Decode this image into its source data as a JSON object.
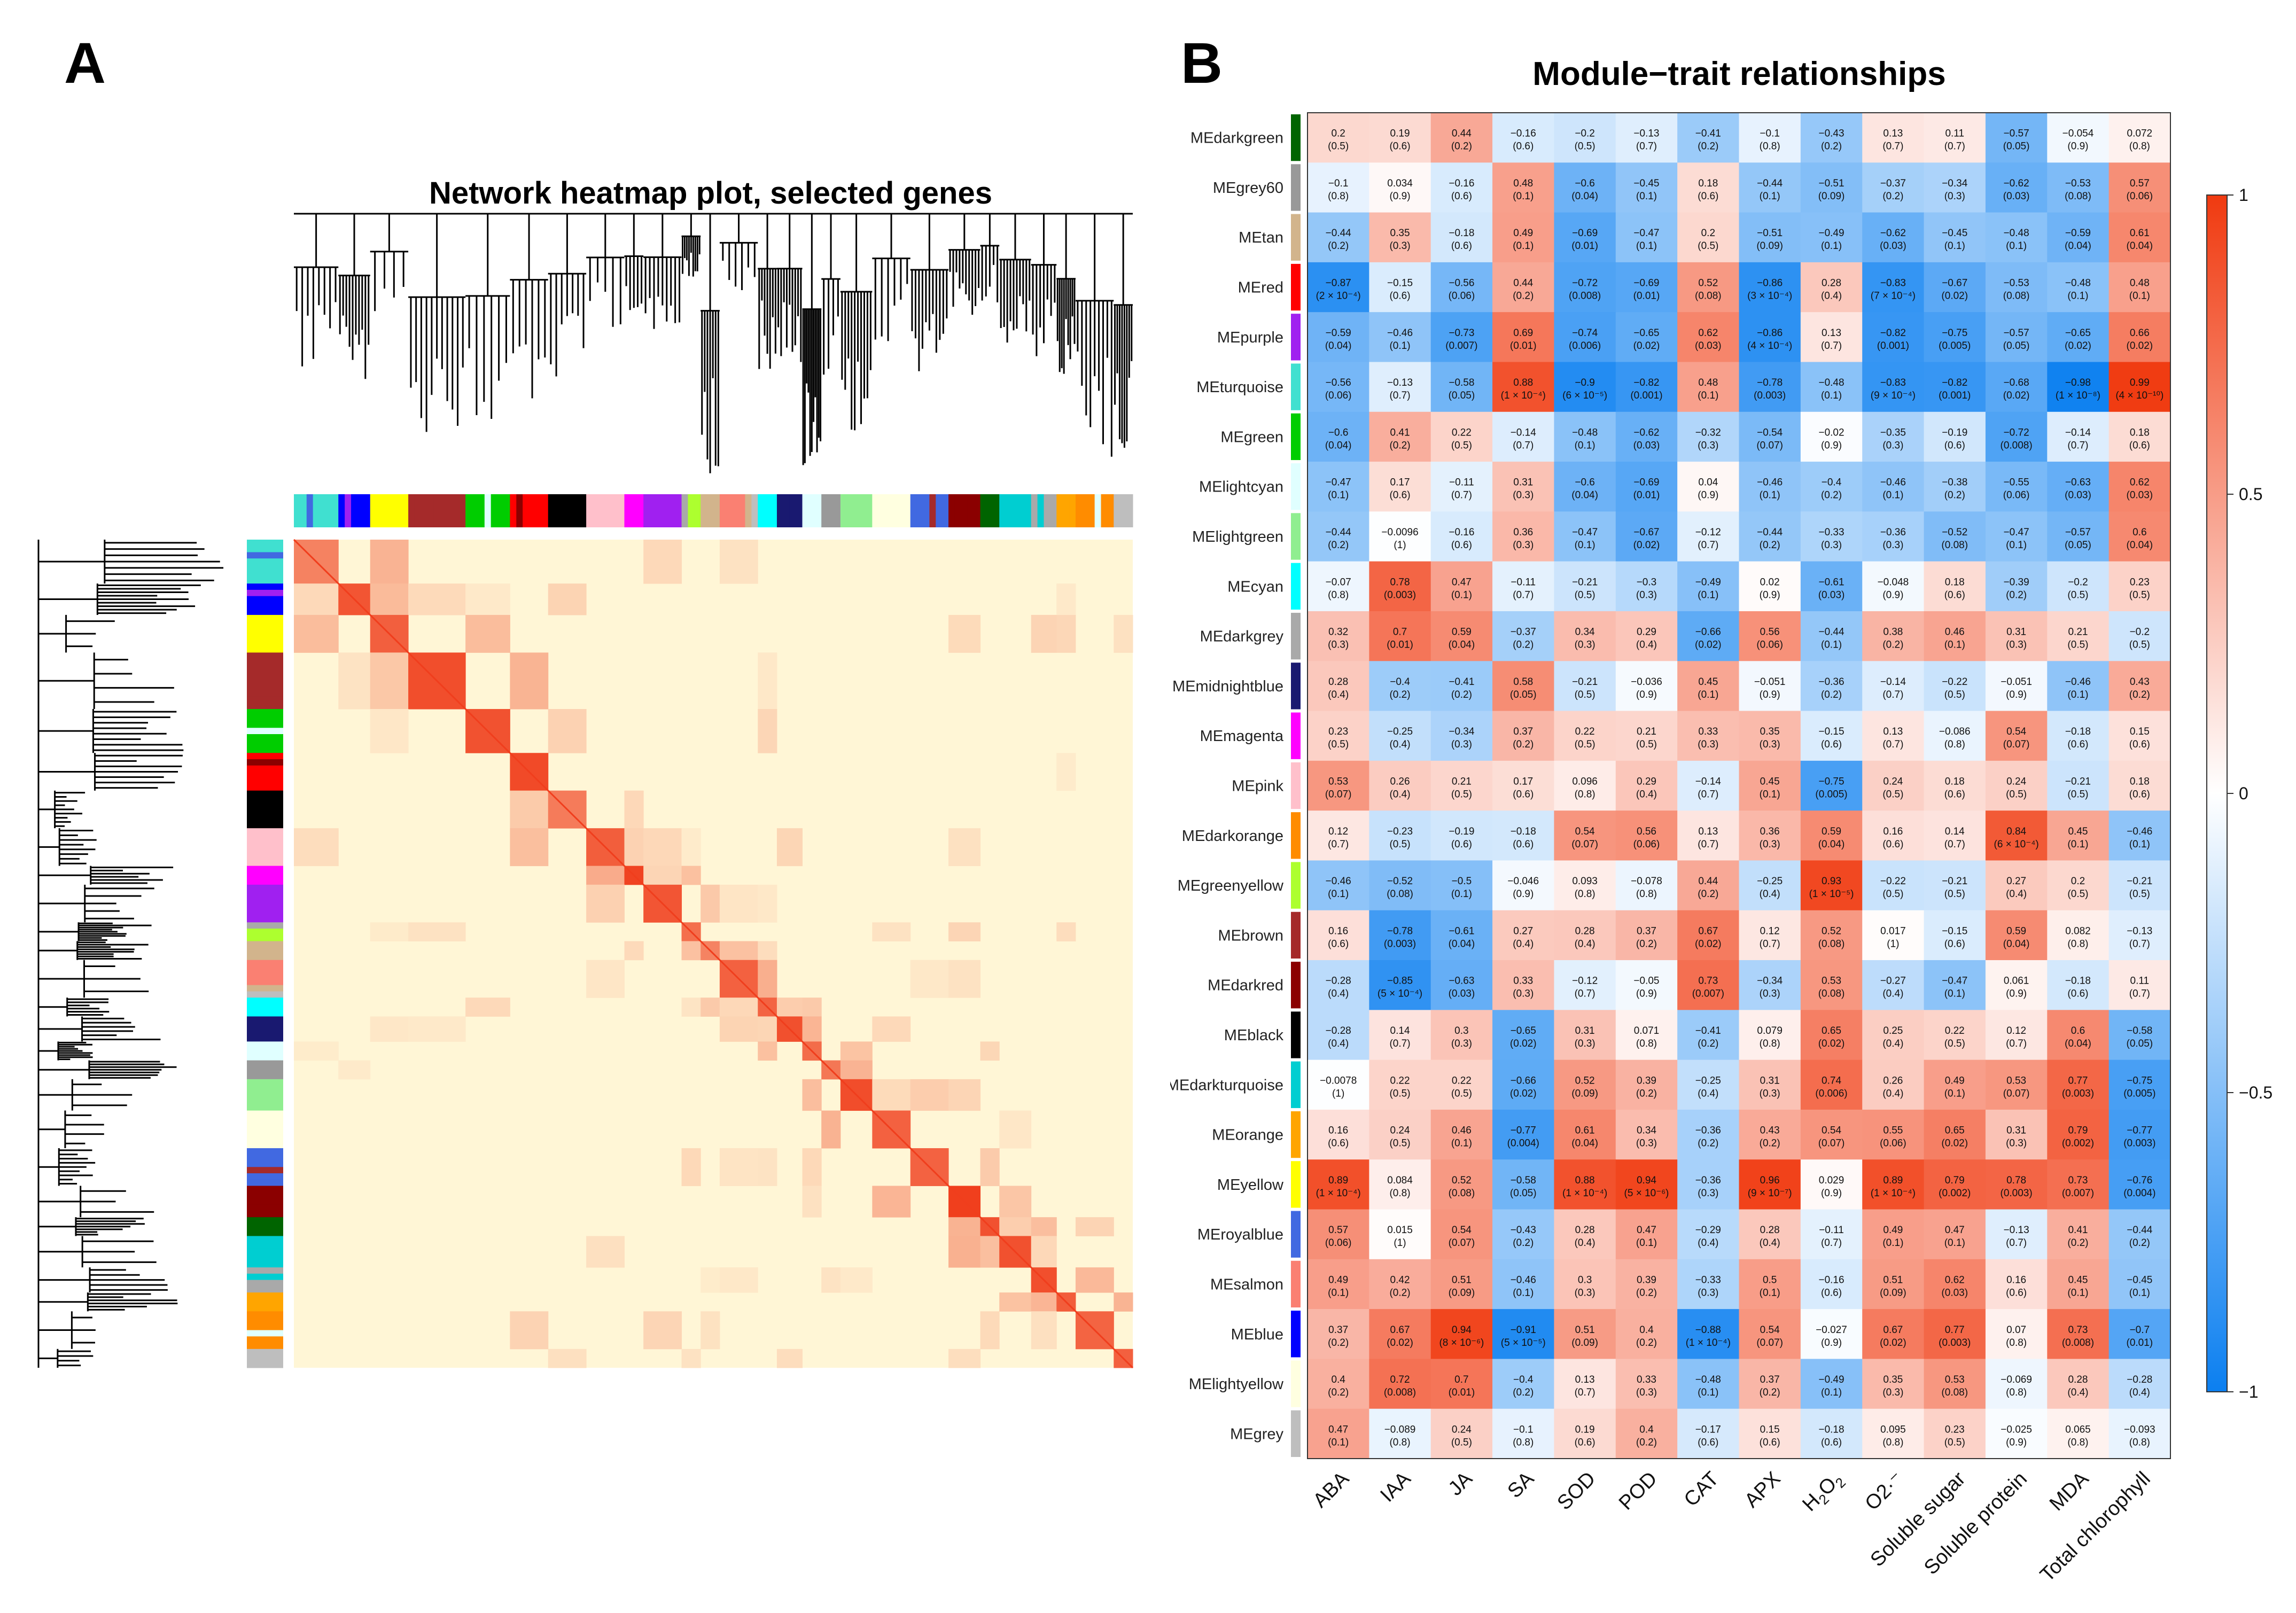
{
  "panels": {
    "a": {
      "label": "A",
      "title": "Network heatmap plot, selected genes"
    },
    "b": {
      "label": "B",
      "title": "Module−trait relationships"
    }
  },
  "colors": {
    "negative": "#0b7ff0",
    "neutral": "#ffffff",
    "positive": "#f03a10",
    "tom_low": "#fff6d6",
    "tom_high": "#ee2a08",
    "dendrogram": "#000000"
  },
  "network_modules": {
    "order": [
      "MEturquoise",
      "MEblue",
      "MEyellow",
      "MEbrown",
      "MEgreen",
      "MEred",
      "MEblack",
      "MEpink",
      "MEmagenta",
      "MEpurple",
      "MEgreenyellow",
      "MEtan",
      "MEsalmon",
      "MEcyan",
      "MEmidnightblue",
      "MElightcyan",
      "MEgrey60",
      "MElightgreen",
      "MElightyellow",
      "MEroyalblue",
      "MEdarkred",
      "MEdarkgreen",
      "MEdarkturquoise",
      "MEdarkgrey",
      "MEorange",
      "MEdarkorange",
      "MEgrey"
    ]
  },
  "chart_data": {
    "type": "heatmap",
    "title": "Module−trait relationships",
    "xlabel": "",
    "ylabel": "",
    "zlim": [
      -1,
      1
    ],
    "colorbar_ticks": [
      "1",
      "0.5",
      "0",
      "−0.5",
      "−1"
    ],
    "columns": [
      "ABA",
      "IAA",
      "JA",
      "SA",
      "SOD",
      "POD",
      "CAT",
      "APX",
      "H2O2",
      "O2·⁻",
      "Soluble sugar",
      "Soluble protein",
      "MDA",
      "Total chlorophyll"
    ],
    "rows": [
      {
        "module": "MEdarkgreen",
        "swatch": "#006400",
        "values": [
          0.2,
          0.19,
          0.44,
          -0.16,
          -0.2,
          -0.13,
          -0.41,
          -0.1,
          -0.43,
          0.13,
          0.11,
          -0.57,
          -0.054,
          0.072
        ],
        "pvalues": [
          "0.5",
          "0.6",
          "0.2",
          "0.6",
          "0.5",
          "0.7",
          "0.2",
          "0.8",
          "0.2",
          "0.7",
          "0.7",
          "0.05",
          "0.9",
          "0.8"
        ]
      },
      {
        "module": "MEgrey60",
        "swatch": "#999999",
        "values": [
          -0.1,
          0.034,
          -0.16,
          0.48,
          -0.6,
          -0.45,
          0.18,
          -0.44,
          -0.51,
          -0.37,
          -0.34,
          -0.62,
          -0.53,
          0.57
        ],
        "pvalues": [
          "0.8",
          "0.9",
          "0.6",
          "0.1",
          "0.04",
          "0.1",
          "0.6",
          "0.1",
          "0.09",
          "0.2",
          "0.3",
          "0.03",
          "0.08",
          "0.06"
        ]
      },
      {
        "module": "MEtan",
        "swatch": "#d2b48c",
        "values": [
          -0.44,
          0.35,
          -0.18,
          0.49,
          -0.69,
          -0.47,
          0.2,
          -0.51,
          -0.49,
          -0.62,
          -0.45,
          -0.48,
          -0.59,
          0.61
        ],
        "pvalues": [
          "0.2",
          "0.3",
          "0.6",
          "0.1",
          "0.01",
          "0.1",
          "0.5",
          "0.09",
          "0.1",
          "0.03",
          "0.1",
          "0.1",
          "0.04",
          "0.04"
        ]
      },
      {
        "module": "MEred",
        "swatch": "#ff0000",
        "values": [
          -0.87,
          -0.15,
          -0.56,
          0.44,
          -0.72,
          -0.69,
          0.52,
          -0.86,
          0.28,
          -0.83,
          -0.67,
          -0.53,
          -0.48,
          0.48
        ],
        "pvalues": [
          "2 × 10⁻⁴",
          "0.6",
          "0.06",
          "0.2",
          "0.008",
          "0.01",
          "0.08",
          "3 × 10⁻⁴",
          "0.4",
          "7 × 10⁻⁴",
          "0.02",
          "0.08",
          "0.1",
          "0.1"
        ]
      },
      {
        "module": "MEpurple",
        "swatch": "#a020f0",
        "values": [
          -0.59,
          -0.46,
          -0.73,
          0.69,
          -0.74,
          -0.65,
          0.62,
          -0.86,
          0.13,
          -0.82,
          -0.75,
          -0.57,
          -0.65,
          0.66
        ],
        "pvalues": [
          "0.04",
          "0.1",
          "0.007",
          "0.01",
          "0.006",
          "0.02",
          "0.03",
          "4 × 10⁻⁴",
          "0.7",
          "0.001",
          "0.005",
          "0.05",
          "0.02",
          "0.02"
        ]
      },
      {
        "module": "MEturquoise",
        "swatch": "#40e0d0",
        "values": [
          -0.56,
          -0.13,
          -0.58,
          0.88,
          -0.9,
          -0.82,
          0.48,
          -0.78,
          -0.48,
          -0.83,
          -0.82,
          -0.68,
          -0.98,
          0.99
        ],
        "pvalues": [
          "0.06",
          "0.7",
          "0.05",
          "1 × 10⁻⁴",
          "6 × 10⁻⁵",
          "0.001",
          "0.1",
          "0.003",
          "0.1",
          "9 × 10⁻⁴",
          "0.001",
          "0.02",
          "1 × 10⁻⁸",
          "4 × 10⁻¹⁰"
        ]
      },
      {
        "module": "MEgreen",
        "swatch": "#00cd00",
        "values": [
          -0.6,
          0.41,
          0.22,
          -0.14,
          -0.48,
          -0.62,
          -0.32,
          -0.54,
          -0.02,
          -0.35,
          -0.19,
          -0.72,
          -0.14,
          0.18
        ],
        "pvalues": [
          "0.04",
          "0.2",
          "0.5",
          "0.7",
          "0.1",
          "0.03",
          "0.3",
          "0.07",
          "0.9",
          "0.3",
          "0.6",
          "0.008",
          "0.7",
          "0.6"
        ]
      },
      {
        "module": "MElightcyan",
        "swatch": "#e0ffff",
        "values": [
          -0.47,
          0.17,
          -0.11,
          0.31,
          -0.6,
          -0.69,
          0.04,
          -0.46,
          -0.4,
          -0.46,
          -0.38,
          -0.55,
          -0.63,
          0.62
        ],
        "pvalues": [
          "0.1",
          "0.6",
          "0.7",
          "0.3",
          "0.04",
          "0.01",
          "0.9",
          "0.1",
          "0.2",
          "0.1",
          "0.2",
          "0.06",
          "0.03",
          "0.03"
        ]
      },
      {
        "module": "MElightgreen",
        "swatch": "#90ee90",
        "values": [
          -0.44,
          -0.0096,
          -0.16,
          0.36,
          -0.47,
          -0.67,
          -0.12,
          -0.44,
          -0.33,
          -0.36,
          -0.52,
          -0.47,
          -0.57,
          0.6
        ],
        "pvalues": [
          "0.2",
          "1",
          "0.6",
          "0.3",
          "0.1",
          "0.02",
          "0.7",
          "0.2",
          "0.3",
          "0.3",
          "0.08",
          "0.1",
          "0.05",
          "0.04"
        ]
      },
      {
        "module": "MEcyan",
        "swatch": "#00ffff",
        "values": [
          -0.07,
          0.78,
          0.47,
          -0.11,
          -0.21,
          -0.3,
          -0.49,
          0.02,
          -0.61,
          -0.048,
          0.18,
          -0.39,
          -0.2,
          0.23
        ],
        "pvalues": [
          "0.8",
          "0.003",
          "0.1",
          "0.7",
          "0.5",
          "0.3",
          "0.1",
          "0.9",
          "0.03",
          "0.9",
          "0.6",
          "0.2",
          "0.5",
          "0.5"
        ]
      },
      {
        "module": "MEdarkgrey",
        "swatch": "#a9a9a9",
        "values": [
          0.32,
          0.7,
          0.59,
          -0.37,
          0.34,
          0.29,
          -0.66,
          0.56,
          -0.44,
          0.38,
          0.46,
          0.31,
          0.21,
          -0.2
        ],
        "pvalues": [
          "0.3",
          "0.01",
          "0.04",
          "0.2",
          "0.3",
          "0.4",
          "0.02",
          "0.06",
          "0.1",
          "0.2",
          "0.1",
          "0.3",
          "0.5",
          "0.5"
        ]
      },
      {
        "module": "MEmidnightblue",
        "swatch": "#191970",
        "values": [
          0.28,
          -0.4,
          -0.41,
          0.58,
          -0.21,
          -0.036,
          0.45,
          -0.051,
          -0.36,
          -0.14,
          -0.22,
          -0.051,
          -0.46,
          0.43
        ],
        "pvalues": [
          "0.4",
          "0.2",
          "0.2",
          "0.05",
          "0.5",
          "0.9",
          "0.1",
          "0.9",
          "0.2",
          "0.7",
          "0.5",
          "0.9",
          "0.1",
          "0.2"
        ]
      },
      {
        "module": "MEmagenta",
        "swatch": "#ff00ff",
        "values": [
          0.23,
          -0.25,
          -0.34,
          0.37,
          0.22,
          0.21,
          0.33,
          0.35,
          -0.15,
          0.13,
          -0.086,
          0.54,
          -0.18,
          0.15
        ],
        "pvalues": [
          "0.5",
          "0.4",
          "0.3",
          "0.2",
          "0.5",
          "0.5",
          "0.3",
          "0.3",
          "0.6",
          "0.7",
          "0.8",
          "0.07",
          "0.6",
          "0.6"
        ]
      },
      {
        "module": "MEpink",
        "swatch": "#ffc0cb",
        "values": [
          0.53,
          0.26,
          0.21,
          0.17,
          0.096,
          0.29,
          -0.14,
          0.45,
          -0.75,
          0.24,
          0.18,
          0.24,
          -0.21,
          0.18
        ],
        "pvalues": [
          "0.07",
          "0.4",
          "0.5",
          "0.6",
          "0.8",
          "0.4",
          "0.7",
          "0.1",
          "0.005",
          "0.5",
          "0.6",
          "0.5",
          "0.5",
          "0.6"
        ]
      },
      {
        "module": "MEdarkorange",
        "swatch": "#ff8c00",
        "values": [
          0.12,
          -0.23,
          -0.19,
          -0.18,
          0.54,
          0.56,
          0.13,
          0.36,
          0.59,
          0.16,
          0.14,
          0.84,
          0.45,
          -0.46
        ],
        "pvalues": [
          "0.7",
          "0.5",
          "0.6",
          "0.6",
          "0.07",
          "0.06",
          "0.7",
          "0.3",
          "0.04",
          "0.6",
          "0.7",
          "6 × 10⁻⁴",
          "0.1",
          "0.1"
        ]
      },
      {
        "module": "MEgreenyellow",
        "swatch": "#adff2f",
        "values": [
          -0.46,
          -0.52,
          -0.5,
          -0.046,
          0.093,
          -0.078,
          0.44,
          -0.25,
          0.93,
          -0.22,
          -0.21,
          0.27,
          0.2,
          -0.21
        ],
        "pvalues": [
          "0.1",
          "0.08",
          "0.1",
          "0.9",
          "0.8",
          "0.8",
          "0.2",
          "0.4",
          "1 × 10⁻⁵",
          "0.5",
          "0.5",
          "0.4",
          "0.5",
          "0.5"
        ]
      },
      {
        "module": "MEbrown",
        "swatch": "#a52a2a",
        "values": [
          0.16,
          -0.78,
          -0.61,
          0.27,
          0.28,
          0.37,
          0.67,
          0.12,
          0.52,
          0.017,
          -0.15,
          0.59,
          0.082,
          -0.13
        ],
        "pvalues": [
          "0.6",
          "0.003",
          "0.04",
          "0.4",
          "0.4",
          "0.2",
          "0.02",
          "0.7",
          "0.08",
          "1",
          "0.6",
          "0.04",
          "0.8",
          "0.7"
        ]
      },
      {
        "module": "MEdarkred",
        "swatch": "#8b0000",
        "values": [
          -0.28,
          -0.85,
          -0.63,
          0.33,
          -0.12,
          -0.05,
          0.73,
          -0.34,
          0.53,
          -0.27,
          -0.47,
          0.061,
          -0.18,
          0.11
        ],
        "pvalues": [
          "0.4",
          "5 × 10⁻⁴",
          "0.03",
          "0.3",
          "0.7",
          "0.9",
          "0.007",
          "0.3",
          "0.08",
          "0.4",
          "0.1",
          "0.9",
          "0.6",
          "0.7"
        ]
      },
      {
        "module": "MEblack",
        "swatch": "#000000",
        "values": [
          -0.28,
          0.14,
          0.3,
          -0.65,
          0.31,
          0.071,
          -0.41,
          0.079,
          0.65,
          0.25,
          0.22,
          0.12,
          0.6,
          -0.58
        ],
        "pvalues": [
          "0.4",
          "0.7",
          "0.3",
          "0.02",
          "0.3",
          "0.8",
          "0.2",
          "0.8",
          "0.02",
          "0.4",
          "0.5",
          "0.7",
          "0.04",
          "0.05"
        ]
      },
      {
        "module": "MEdarkturquoise",
        "swatch": "#00ced1",
        "values": [
          -0.0078,
          0.22,
          0.22,
          -0.66,
          0.52,
          0.39,
          -0.25,
          0.31,
          0.74,
          0.26,
          0.49,
          0.53,
          0.77,
          -0.75
        ],
        "pvalues": [
          "1",
          "0.5",
          "0.5",
          "0.02",
          "0.09",
          "0.2",
          "0.4",
          "0.3",
          "0.006",
          "0.4",
          "0.1",
          "0.07",
          "0.003",
          "0.005"
        ]
      },
      {
        "module": "MEorange",
        "swatch": "#ffa500",
        "values": [
          0.16,
          0.24,
          0.46,
          -0.77,
          0.61,
          0.34,
          -0.36,
          0.43,
          0.54,
          0.55,
          0.65,
          0.31,
          0.79,
          -0.77
        ],
        "pvalues": [
          "0.6",
          "0.5",
          "0.1",
          "0.004",
          "0.04",
          "0.3",
          "0.2",
          "0.2",
          "0.07",
          "0.06",
          "0.02",
          "0.3",
          "0.002",
          "0.003"
        ]
      },
      {
        "module": "MEyellow",
        "swatch": "#ffff00",
        "values": [
          0.89,
          0.084,
          0.52,
          -0.58,
          0.88,
          0.94,
          -0.36,
          0.96,
          0.029,
          0.89,
          0.79,
          0.78,
          0.73,
          -0.76
        ],
        "pvalues": [
          "1 × 10⁻⁴",
          "0.8",
          "0.08",
          "0.05",
          "1 × 10⁻⁴",
          "5 × 10⁻⁶",
          "0.3",
          "9 × 10⁻⁷",
          "0.9",
          "1 × 10⁻⁴",
          "0.002",
          "0.003",
          "0.007",
          "0.004"
        ]
      },
      {
        "module": "MEroyalblue",
        "swatch": "#4169e1",
        "values": [
          0.57,
          0.015,
          0.54,
          -0.43,
          0.28,
          0.47,
          -0.29,
          0.28,
          -0.11,
          0.49,
          0.47,
          -0.13,
          0.41,
          -0.44
        ],
        "pvalues": [
          "0.06",
          "1",
          "0.07",
          "0.2",
          "0.4",
          "0.1",
          "0.4",
          "0.4",
          "0.7",
          "0.1",
          "0.1",
          "0.7",
          "0.2",
          "0.2"
        ]
      },
      {
        "module": "MEsalmon",
        "swatch": "#fa8072",
        "values": [
          0.49,
          0.42,
          0.51,
          -0.46,
          0.3,
          0.39,
          -0.33,
          0.5,
          -0.16,
          0.51,
          0.62,
          0.16,
          0.45,
          -0.45
        ],
        "pvalues": [
          "0.1",
          "0.2",
          "0.09",
          "0.1",
          "0.3",
          "0.2",
          "0.3",
          "0.1",
          "0.6",
          "0.09",
          "0.03",
          "0.6",
          "0.1",
          "0.1"
        ]
      },
      {
        "module": "MEblue",
        "swatch": "#0000ff",
        "values": [
          0.37,
          0.67,
          0.94,
          -0.91,
          0.51,
          0.4,
          -0.88,
          0.54,
          -0.027,
          0.67,
          0.77,
          0.07,
          0.73,
          -0.7
        ],
        "pvalues": [
          "0.2",
          "0.02",
          "8 × 10⁻⁶",
          "5 × 10⁻⁵",
          "0.09",
          "0.2",
          "1 × 10⁻⁴",
          "0.07",
          "0.9",
          "0.02",
          "0.003",
          "0.8",
          "0.008",
          "0.01"
        ]
      },
      {
        "module": "MElightyellow",
        "swatch": "#ffffe0",
        "values": [
          0.4,
          0.72,
          0.7,
          -0.4,
          0.13,
          0.33,
          -0.48,
          0.37,
          -0.49,
          0.35,
          0.53,
          -0.069,
          0.28,
          -0.28
        ],
        "pvalues": [
          "0.2",
          "0.008",
          "0.01",
          "0.2",
          "0.7",
          "0.3",
          "0.1",
          "0.2",
          "0.1",
          "0.3",
          "0.08",
          "0.8",
          "0.4",
          "0.4"
        ]
      },
      {
        "module": "MEgrey",
        "swatch": "#bebebe",
        "values": [
          0.47,
          -0.089,
          0.24,
          -0.1,
          0.19,
          0.4,
          -0.17,
          0.15,
          -0.18,
          0.095,
          0.23,
          -0.025,
          0.065,
          -0.093
        ],
        "pvalues": [
          "0.1",
          "0.8",
          "0.5",
          "0.8",
          "0.6",
          "0.2",
          "0.6",
          "0.6",
          "0.6",
          "0.8",
          "0.5",
          "0.9",
          "0.8",
          "0.8"
        ]
      }
    ]
  }
}
